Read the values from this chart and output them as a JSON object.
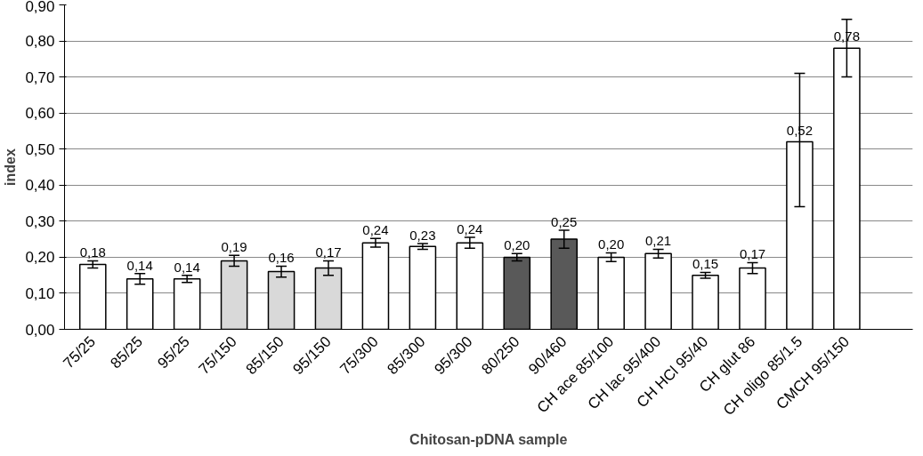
{
  "chart_data": {
    "type": "bar",
    "xlabel": "Chitosan-pDNA sample",
    "ylabel": "index",
    "categories": [
      "75/25",
      "85/25",
      "95/25",
      "75/150",
      "85/150",
      "95/150",
      "75/300",
      "85/300",
      "95/300",
      "80/250",
      "90/460",
      "CH ace 85/100",
      "CH lac 95/400",
      "CH HCl 95/40",
      "CH glut 86",
      "CH oligo 85/1.5",
      "CMCH 95/150"
    ],
    "values": [
      0.18,
      0.14,
      0.14,
      0.19,
      0.16,
      0.17,
      0.24,
      0.23,
      0.24,
      0.2,
      0.25,
      0.2,
      0.21,
      0.15,
      0.17,
      0.52,
      0.78
    ],
    "value_labels": [
      "0,18",
      "0,14",
      "0,14",
      "0,19",
      "0,16",
      "0,17",
      "0,24",
      "0,23",
      "0,24",
      "0,20",
      "0,25",
      "0,20",
      "0,21",
      "0,15",
      "0,17",
      "0,52",
      "0,78"
    ],
    "colors": [
      "#ffffff",
      "#ffffff",
      "#ffffff",
      "#d9d9d9",
      "#d9d9d9",
      "#d9d9d9",
      "#ffffff",
      "#ffffff",
      "#ffffff",
      "#595959",
      "#595959",
      "#ffffff",
      "#ffffff",
      "#ffffff",
      "#ffffff",
      "#ffffff",
      "#ffffff"
    ],
    "errors": [
      0.01,
      0.015,
      0.01,
      0.015,
      0.015,
      0.02,
      0.012,
      0.008,
      0.015,
      0.01,
      0.025,
      0.012,
      0.012,
      0.008,
      0.015,
      [
        0.34,
        0.71
      ],
      [
        0.7,
        0.86
      ]
    ],
    "ylim": [
      0,
      0.9
    ],
    "yticks": [
      {
        "value": 0,
        "label": "0,00"
      },
      {
        "value": 0.1,
        "label": "0,10"
      },
      {
        "value": 0.2,
        "label": "0,20"
      },
      {
        "value": 0.3,
        "label": "0,30"
      },
      {
        "value": 0.4,
        "label": "0,40"
      },
      {
        "value": 0.5,
        "label": "0,50"
      },
      {
        "value": 0.6,
        "label": "0,60"
      },
      {
        "value": 0.7,
        "label": "0,70"
      },
      {
        "value": 0.8,
        "label": "0,80"
      },
      {
        "value": 0.9,
        "label": "0,90"
      }
    ],
    "grid": "y"
  }
}
